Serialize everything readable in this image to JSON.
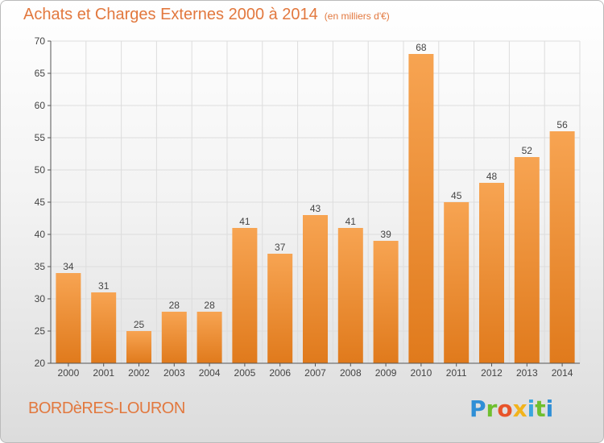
{
  "header": {
    "title": "Achats et Charges Externes 2000 à 2014",
    "subtitle": "(en milliers d'€)"
  },
  "footer": {
    "commune": "BORDèRES-LOURON",
    "logo": "Proxiti"
  },
  "colors": {
    "accent": "#e2783e",
    "bar_light": "#f7a452",
    "bar_dark": "#e07a1c"
  },
  "chart_data": {
    "type": "bar",
    "categories": [
      "2000",
      "2001",
      "2002",
      "2003",
      "2004",
      "2005",
      "2006",
      "2007",
      "2008",
      "2009",
      "2010",
      "2011",
      "2012",
      "2013",
      "2014"
    ],
    "values": [
      34,
      31,
      25,
      28,
      28,
      41,
      37,
      43,
      41,
      39,
      68,
      45,
      48,
      52,
      56
    ],
    "ylim": [
      20,
      70
    ],
    "yticks": [
      20,
      25,
      30,
      35,
      40,
      45,
      50,
      55,
      60,
      65,
      70
    ],
    "grid": true
  }
}
